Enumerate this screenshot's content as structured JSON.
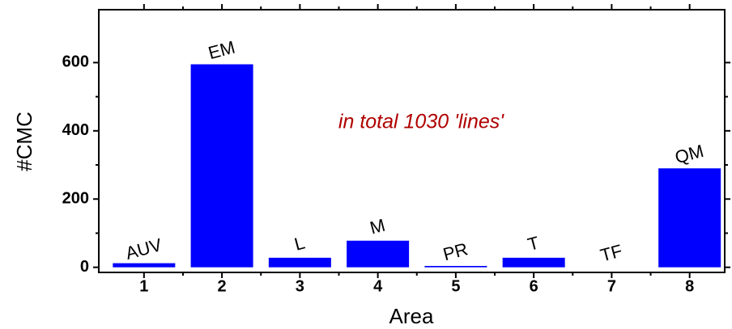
{
  "chart_data": {
    "type": "bar",
    "x": [
      1,
      2,
      3,
      4,
      5,
      6,
      7,
      8
    ],
    "values": [
      12,
      595,
      28,
      78,
      4,
      28,
      0,
      290
    ],
    "bar_labels": [
      "AUV",
      "EM",
      "L",
      "M",
      "PR",
      "T",
      "TF",
      "QM"
    ],
    "color": "#0000ff",
    "xlabel": "Area",
    "ylabel": "#CMC",
    "annotation": "in total 1030 'lines'",
    "xlim": [
      0.42,
      8.45
    ],
    "ylim": [
      -15,
      755
    ],
    "xticks": [
      1,
      2,
      3,
      4,
      5,
      6,
      7,
      8
    ],
    "yticks": [
      0,
      200,
      400,
      600
    ],
    "bar_width": 0.8
  }
}
